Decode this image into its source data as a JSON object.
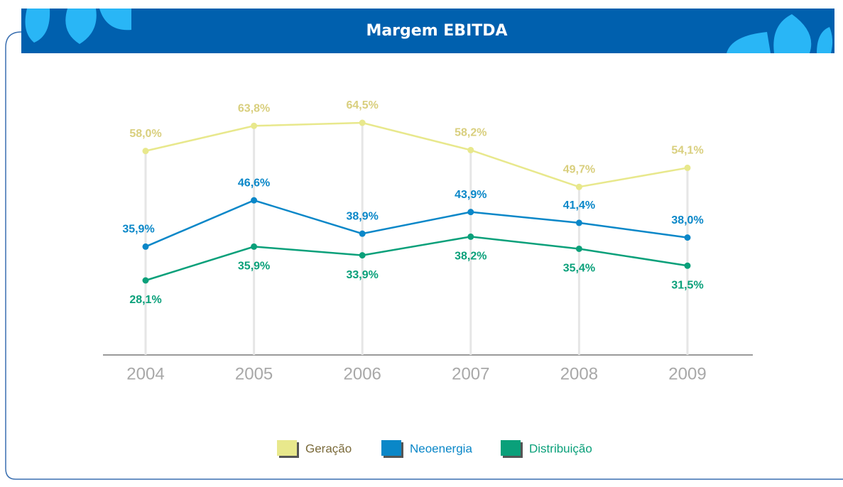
{
  "chart_data": {
    "type": "line",
    "title": "Margem EBITDA",
    "categories": [
      "2004",
      "2005",
      "2006",
      "2007",
      "2008",
      "2009"
    ],
    "series": [
      {
        "name": "Geração",
        "color": "#e8e88c",
        "label_color": "#d9cf7e",
        "values": [
          58.0,
          63.8,
          64.5,
          58.2,
          49.7,
          54.1
        ],
        "value_labels": [
          "58,0%",
          "63,8%",
          "64,5%",
          "58,2%",
          "49,7%",
          "54,1%"
        ]
      },
      {
        "name": "Neoenergia",
        "color": "#0a87c8",
        "label_color": "#0a87c8",
        "values": [
          35.9,
          46.6,
          38.9,
          43.9,
          41.4,
          38.0
        ],
        "value_labels": [
          "35,9%",
          "46,6%",
          "38,9%",
          "43,9%",
          "41,4%",
          "38,0%"
        ]
      },
      {
        "name": "Distribuição",
        "color": "#0aa07a",
        "label_color": "#0aa07a",
        "values": [
          28.1,
          35.9,
          33.9,
          38.2,
          35.4,
          31.5
        ],
        "value_labels": [
          "28,1%",
          "35,9%",
          "33,9%",
          "38,2%",
          "35,4%",
          "31,5%"
        ]
      }
    ]
  }
}
